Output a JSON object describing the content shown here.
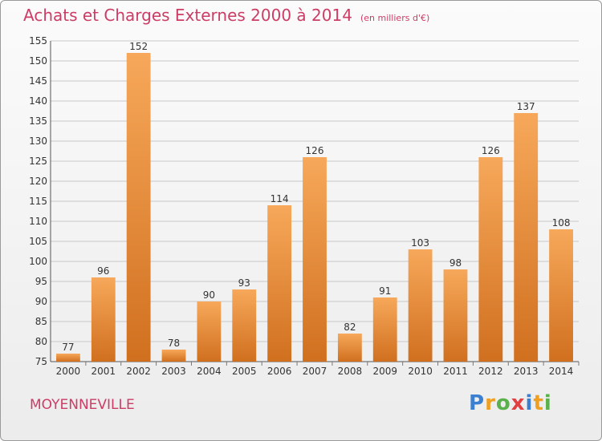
{
  "title": "Achats et Charges Externes 2000 à 2014",
  "unit": "(en milliers d'€)",
  "commune": "MOYENNEVILLE",
  "brand": [
    "P",
    "r",
    "o",
    "x",
    "i",
    "t",
    "i"
  ],
  "chart_data": {
    "type": "bar",
    "title": "Achats et Charges Externes 2000 à 2014",
    "subtitle": "(en milliers d'€)",
    "categories": [
      "2000",
      "2001",
      "2002",
      "2003",
      "2004",
      "2005",
      "2006",
      "2007",
      "2008",
      "2009",
      "2010",
      "2011",
      "2012",
      "2013",
      "2014"
    ],
    "values": [
      77,
      96,
      152,
      78,
      90,
      93,
      114,
      126,
      82,
      91,
      103,
      98,
      126,
      137,
      108
    ],
    "ylim": [
      75,
      155
    ],
    "ytick_step": 5,
    "grid": true,
    "colors": {
      "bar_top": "#f7a85a",
      "bar_bottom": "#d0701f",
      "grid": "#c8c8c8"
    }
  }
}
